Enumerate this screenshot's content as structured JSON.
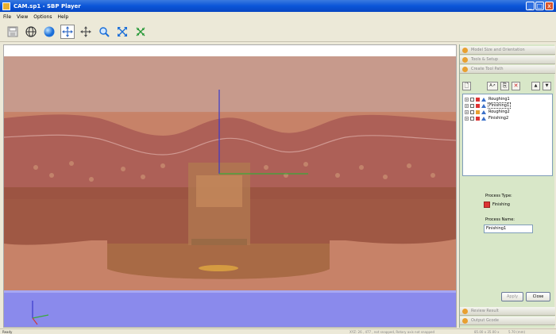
{
  "window": {
    "title": "CAM.sp1 - SBP Player",
    "btn_min": "_",
    "btn_max": "□",
    "btn_close": "x"
  },
  "menu": {
    "items": [
      "File",
      "View",
      "Options",
      "Help"
    ]
  },
  "toolbar": {
    "buttons": [
      "save-icon",
      "globe-icon",
      "sphere-icon",
      "pan-icon",
      "move-icon",
      "zoom-icon",
      "fit-icon",
      "collapse-icon"
    ]
  },
  "panel": {
    "sections": {
      "model_size": "Model Size and Orientation",
      "tools": "Tools & Setup",
      "create_toolpath": "Create Tool Path",
      "review_result": "Review Result",
      "output": "Output Gcode"
    },
    "toolbar": {
      "new": "🗋",
      "edit": "A↗",
      "copy": "⎘",
      "delete": "✕",
      "up": "▲",
      "down": "▼"
    },
    "tree": [
      {
        "label": "Roughing1",
        "selected": false
      },
      {
        "label": "Finishing1",
        "selected": true
      },
      {
        "label": "Roughing2",
        "selected": false
      },
      {
        "label": "Finishing2",
        "selected": false
      }
    ],
    "process_type_label": "Process Type:",
    "process_type_value": "Finishing",
    "process_name_label": "Process Name:",
    "process_name_value": "Finishing1",
    "apply_label": "Apply",
    "close_label": "Close"
  },
  "status": {
    "left": "Ready",
    "mid": "XYZ: 26 , 477 , not snapped, Rotary axis not snapped",
    "r1": "85.00 x 35.00 x",
    "r2": "5.70 (mm)"
  },
  "colors": {
    "accent": "#0a55d8",
    "panel_bg": "#d8e7c8",
    "viewport_bg": "#c79686",
    "floor": "#8a8aec"
  }
}
